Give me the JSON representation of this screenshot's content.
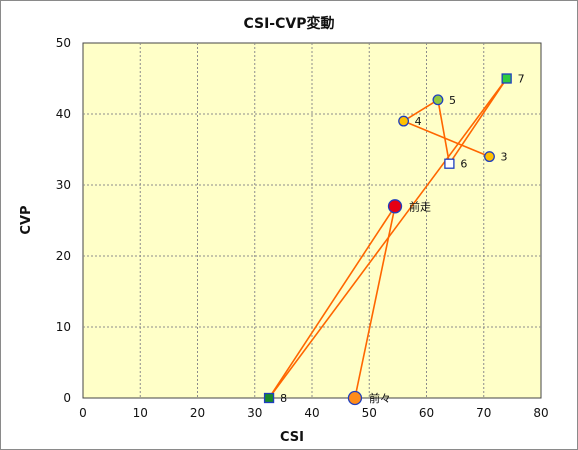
{
  "chart_data": {
    "type": "scatter",
    "title": "CSI-CVP変動",
    "xlabel": "CSI",
    "ylabel": "CVP",
    "xlim": [
      0,
      80
    ],
    "ylim": [
      0,
      50
    ],
    "xticks": [
      0,
      10,
      20,
      30,
      40,
      50,
      60,
      70,
      80
    ],
    "yticks": [
      0,
      10,
      20,
      30,
      40,
      50
    ],
    "grid": true,
    "plot_background": "#ffffc8",
    "grid_color": "#8c8c8c",
    "line_color": "#ff6600",
    "path_order": [
      "前々",
      "前走",
      "8",
      "7",
      "6",
      "5",
      "4",
      "3"
    ],
    "points": [
      {
        "label": "前々",
        "x": 47.5,
        "y": 0,
        "shape": "circle",
        "size": "large",
        "fill": "#ff8c1a",
        "stroke": "#1f3fbf"
      },
      {
        "label": "前走",
        "x": 54.5,
        "y": 27,
        "shape": "circle",
        "size": "large",
        "fill": "#e60012",
        "stroke": "#1f3fbf"
      },
      {
        "label": "3",
        "x": 71,
        "y": 34,
        "shape": "circle",
        "size": "small",
        "fill": "#ffc000",
        "stroke": "#1f3fbf"
      },
      {
        "label": "4",
        "x": 56,
        "y": 39,
        "shape": "circle",
        "size": "small",
        "fill": "#ffc000",
        "stroke": "#1f3fbf"
      },
      {
        "label": "5",
        "x": 62,
        "y": 42,
        "shape": "circle",
        "size": "small",
        "fill": "#92c83e",
        "stroke": "#1f3fbf"
      },
      {
        "label": "6",
        "x": 64,
        "y": 33,
        "shape": "square",
        "size": "small",
        "fill": "#ffffff",
        "stroke": "#1f3fbf"
      },
      {
        "label": "7",
        "x": 74,
        "y": 45,
        "shape": "square",
        "size": "small",
        "fill": "#2ecc40",
        "stroke": "#1f3fbf"
      },
      {
        "label": "8",
        "x": 32.5,
        "y": 0,
        "shape": "square",
        "size": "small",
        "fill": "#1a8a2a",
        "stroke": "#1f3fbf"
      }
    ]
  }
}
